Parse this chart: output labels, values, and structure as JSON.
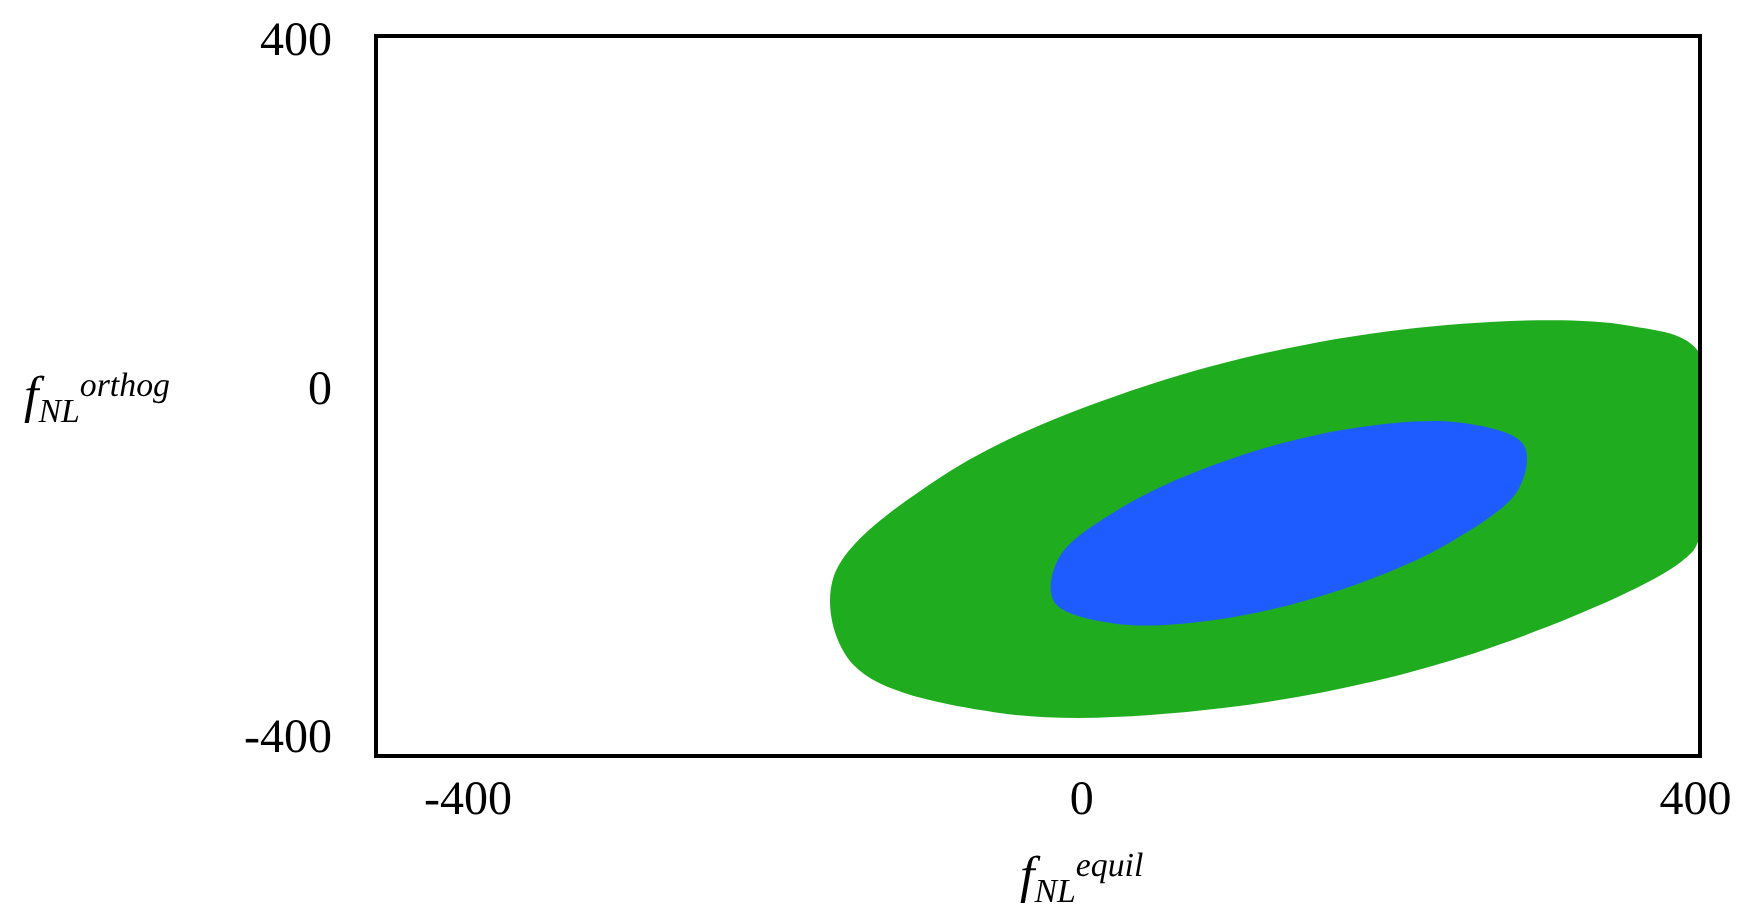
{
  "chart_data": {
    "type": "area",
    "xlabel": "f$_{NL}$$^{equil}$",
    "ylabel": "f$_{NL}$$^{orthog}$",
    "xlim": [
      -460,
      403
    ],
    "ylim": [
      -422,
      404
    ],
    "xticks": [
      -400,
      0,
      400
    ],
    "yticks": [
      -400,
      0,
      400
    ],
    "grid": false,
    "series": [
      {
        "color": "#1fad1f",
        "x": [
          391,
          403,
          403,
          356,
          208,
          44,
          -91,
          -162,
          -149,
          -56,
          92,
          256
        ],
        "values": [
          -199,
          -170,
          40,
          72,
          67,
          4,
          -101,
          -218,
          -317,
          -372,
          -367,
          -304
        ]
      },
      {
        "color": "#1f5cff",
        "x": [
          285,
          288,
          249,
          180,
          99,
          28,
          -15,
          -18,
          21,
          90,
          171,
          242
        ],
        "values": [
          -115,
          -65,
          -40,
          -45,
          -80,
          -135,
          -195,
          -245,
          -270,
          -265,
          -230,
          -175
        ]
      }
    ]
  }
}
